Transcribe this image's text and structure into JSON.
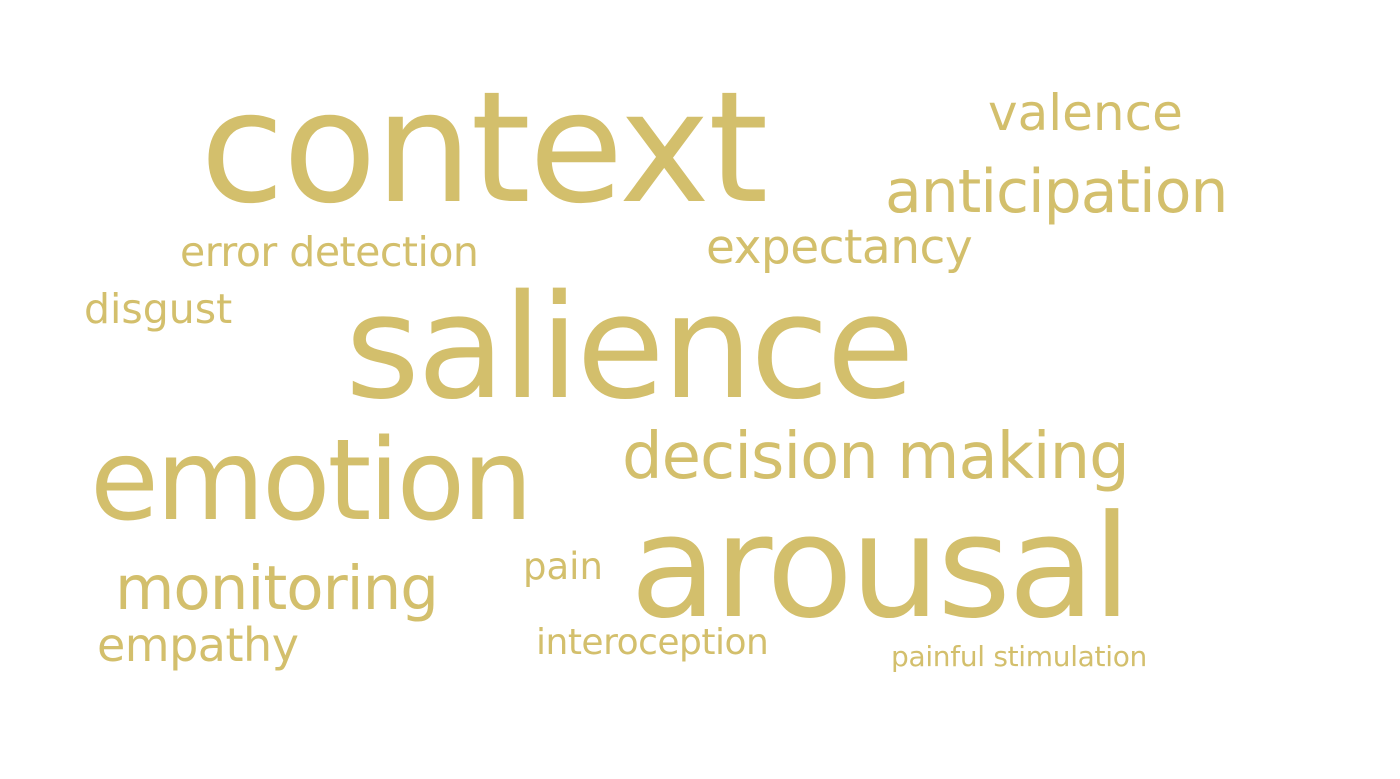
{
  "word_cloud": {
    "color": "#d3bf6c",
    "words": [
      {
        "key": "context",
        "text": "context"
      },
      {
        "key": "valence",
        "text": "valence"
      },
      {
        "key": "anticipation",
        "text": "anticipation"
      },
      {
        "key": "error_detection",
        "text": "error detection"
      },
      {
        "key": "expectancy",
        "text": "expectancy"
      },
      {
        "key": "disgust",
        "text": "disgust"
      },
      {
        "key": "salience",
        "text": "salience"
      },
      {
        "key": "emotion",
        "text": "emotion"
      },
      {
        "key": "decision_making",
        "text": "decision making"
      },
      {
        "key": "arousal",
        "text": "arousal"
      },
      {
        "key": "monitoring",
        "text": "monitoring"
      },
      {
        "key": "pain",
        "text": "pain"
      },
      {
        "key": "empathy",
        "text": "empathy"
      },
      {
        "key": "interoception",
        "text": "interoception"
      },
      {
        "key": "painful_stimulation",
        "text": "painful stimulation"
      }
    ]
  }
}
